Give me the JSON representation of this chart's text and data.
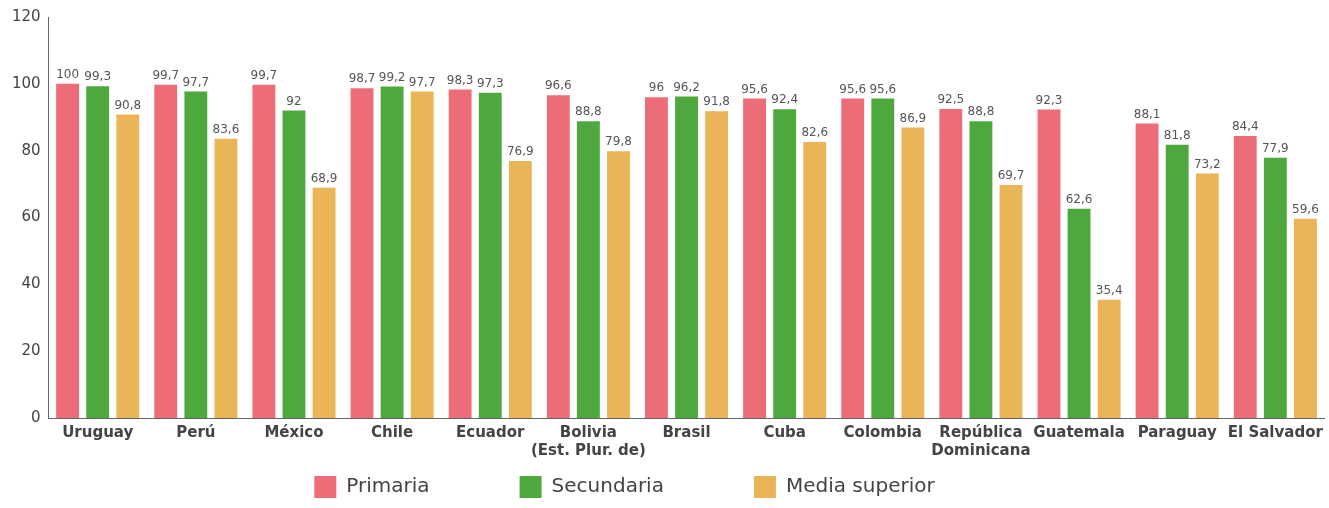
{
  "chart_data": {
    "type": "bar",
    "categories": [
      "Uruguay",
      "Perú",
      "México",
      "Chile",
      "Ecuador",
      "Bolivia\n(Est. Plur. de)",
      "Brasil",
      "Cuba",
      "Colombia",
      "República\nDominicana",
      "Guatemala",
      "Paraguay",
      "El Salvador"
    ],
    "series": [
      {
        "name": "Primaria",
        "color": "#ec6c78",
        "values": [
          100,
          99.7,
          99.7,
          98.7,
          98.3,
          96.6,
          96,
          95.6,
          95.6,
          92.5,
          92.3,
          88.1,
          84.4
        ],
        "value_labels": [
          "100",
          "99,7",
          "99,7",
          "98,7",
          "98,3",
          "96,6",
          "96",
          "95,6",
          "95,6",
          "92,5",
          "92,3",
          "88,1",
          "84,4"
        ]
      },
      {
        "name": "Secundaria",
        "color": "#4da93d",
        "values": [
          99.3,
          97.7,
          92,
          99.2,
          97.3,
          88.8,
          96.2,
          92.4,
          95.6,
          88.8,
          62.6,
          81.8,
          77.9
        ],
        "value_labels": [
          "99,3",
          "97,7",
          "92",
          "99,2",
          "97,3",
          "88,8",
          "96,2",
          "92,4",
          "95,6",
          "88,8",
          "62,6",
          "81,8",
          "77,9"
        ]
      },
      {
        "name": "Media superior",
        "color": "#e9b556",
        "values": [
          90.8,
          83.6,
          68.9,
          97.7,
          76.9,
          79.8,
          91.8,
          82.6,
          86.9,
          69.7,
          35.4,
          73.2,
          59.6
        ],
        "value_labels": [
          "90,8",
          "83,6",
          "68,9",
          "97,7",
          "76,9",
          "79,8",
          "91,8",
          "82,6",
          "86,9",
          "69,7",
          "35,4",
          "73,2",
          "59,6"
        ]
      }
    ],
    "ylim": [
      0,
      120
    ],
    "yticks": [
      0,
      20,
      40,
      60,
      80,
      100,
      120
    ],
    "grid": false,
    "legend": "bottom"
  }
}
